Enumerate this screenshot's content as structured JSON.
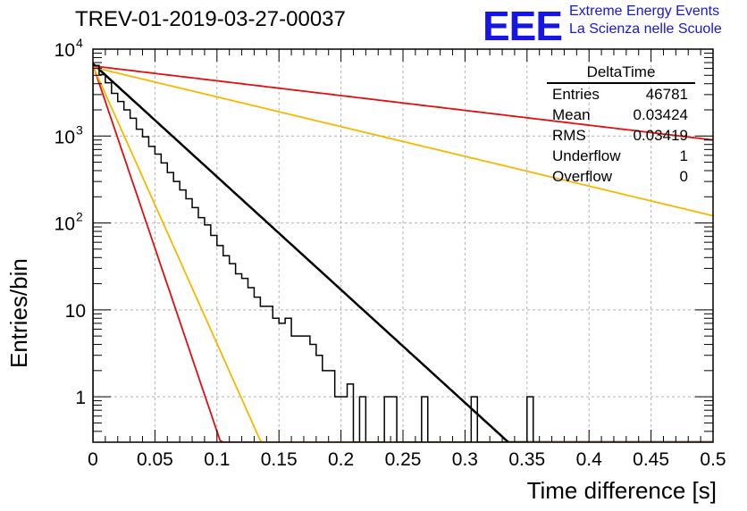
{
  "header": {
    "title": "TREV-01-2019-03-27-00037",
    "logo": "EEE",
    "logo_line1": "Extreme Energy Events",
    "logo_line2": "La Scienza nelle Scuole"
  },
  "stats": {
    "title": "DeltaTime",
    "rows": [
      {
        "label": "Entries",
        "value": "46781"
      },
      {
        "label": "Mean",
        "value": "0.03424"
      },
      {
        "label": "RMS",
        "value": "0.03419"
      },
      {
        "label": "Underflow",
        "value": "1"
      },
      {
        "label": "Overflow",
        "value": "0"
      }
    ]
  },
  "colors": {
    "histogram": "#000000",
    "fit": "#000000",
    "red": "#e01010",
    "orange": "#f5b800",
    "grid": "#b0b0b0"
  },
  "chart_data": {
    "type": "line",
    "title": "TREV-01-2019-03-27-00037",
    "xlabel": "Time difference [s]",
    "ylabel": "Entries/bin",
    "xlim": [
      0,
      0.5
    ],
    "ylim": [
      0.3,
      10000
    ],
    "yscale": "log",
    "grid": true,
    "xticks": [
      "0",
      "0.05",
      "0.1",
      "0.15",
      "0.2",
      "0.25",
      "0.3",
      "0.35",
      "0.4",
      "0.45",
      "0.5"
    ],
    "yticks": [
      {
        "value": 1,
        "label": "1"
      },
      {
        "value": 10,
        "label": "10"
      },
      {
        "value": 100,
        "label": "10",
        "exp": "2"
      },
      {
        "value": 1000,
        "label": "10",
        "exp": "3"
      },
      {
        "value": 10000,
        "label": "10",
        "exp": "4"
      }
    ],
    "histogram": {
      "name": "DeltaTime",
      "bin_width": 0.005,
      "x_start": 0,
      "counts": [
        6500,
        5100,
        4100,
        3100,
        2500,
        2000,
        1600,
        1200,
        980,
        760,
        620,
        490,
        380,
        300,
        240,
        190,
        150,
        115,
        95,
        72,
        55,
        42,
        34,
        26,
        23,
        18,
        14,
        11,
        11,
        8,
        7,
        8,
        5,
        5,
        5,
        4,
        3,
        2,
        2,
        1,
        1,
        1.4,
        0.3,
        1,
        0.3,
        0.3,
        0.3,
        1,
        1,
        0.3,
        0.3,
        0.3,
        0.3,
        1,
        0.3,
        0.3,
        0.3,
        0.3,
        0.3,
        0.3,
        0.3,
        1,
        0.3,
        0.3,
        0.3,
        0.3,
        0.3,
        0.3,
        0.3,
        0.3,
        1
      ]
    },
    "series": [
      {
        "color": "#000000",
        "y0": 6800,
        "tau": 0.0334
      },
      {
        "color": "#e01010",
        "y0": 6400,
        "tau": 0.255
      },
      {
        "color": "#f5b800",
        "y0": 6200,
        "tau": 0.127
      },
      {
        "color": "#e01010",
        "y0": 6600,
        "tau": 0.0103
      },
      {
        "color": "#f5b800",
        "y0": 6400,
        "tau": 0.0136
      }
    ]
  }
}
